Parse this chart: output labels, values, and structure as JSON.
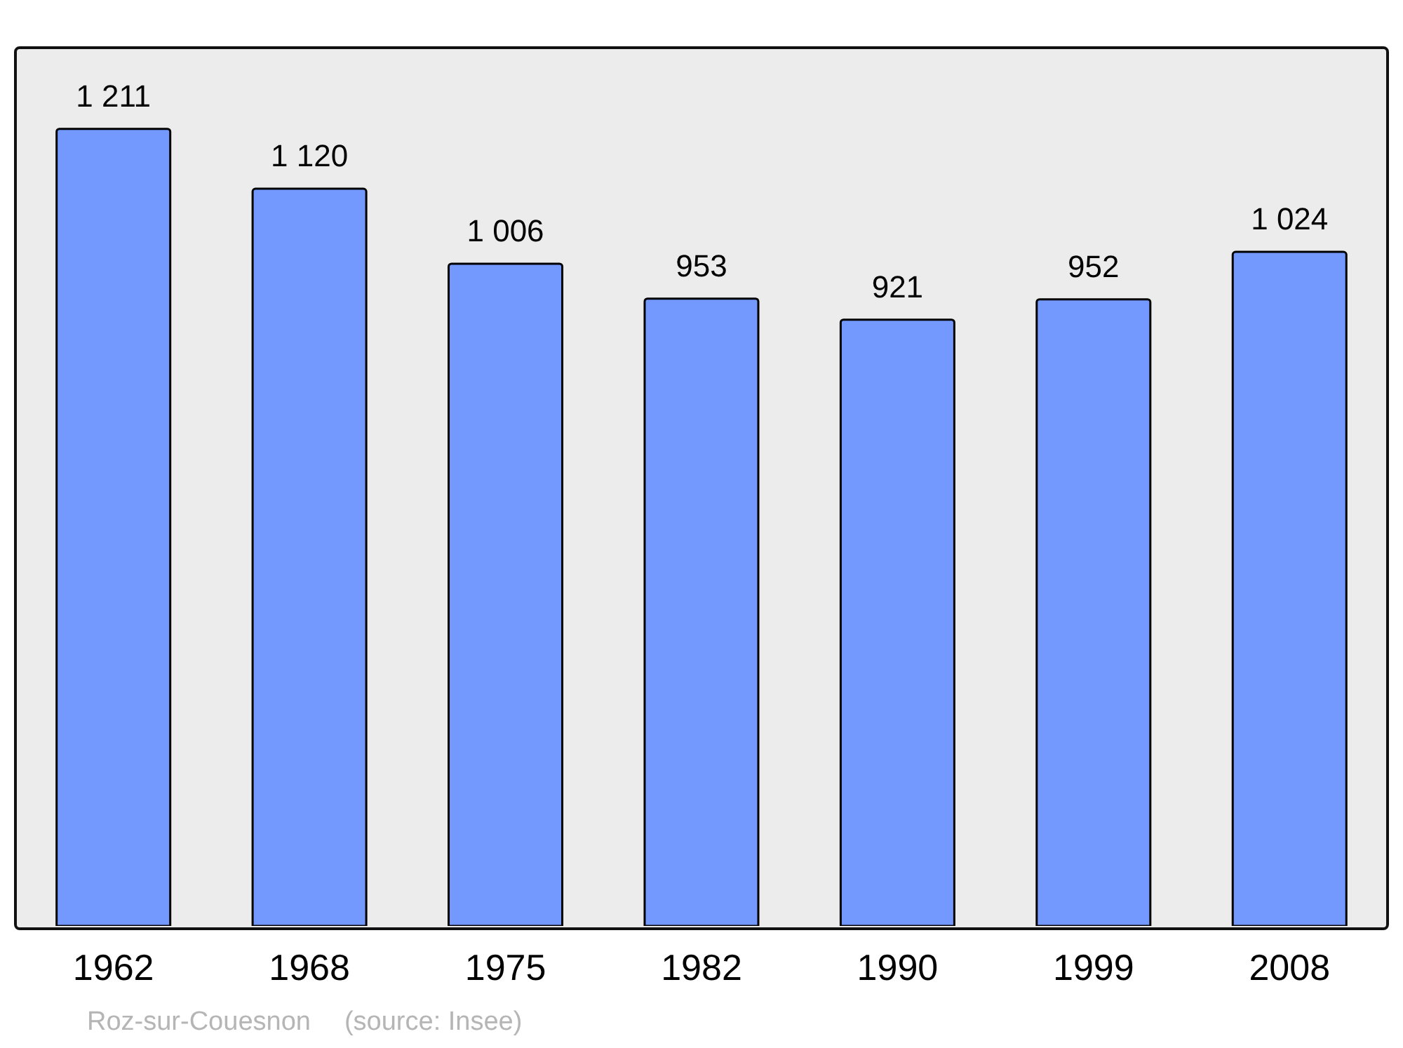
{
  "chart_data": {
    "type": "bar",
    "categories": [
      "1962",
      "1968",
      "1975",
      "1982",
      "1990",
      "1999",
      "2008"
    ],
    "values": [
      1211,
      1120,
      1006,
      953,
      921,
      952,
      1024
    ],
    "value_labels": [
      "1 211",
      "1 120",
      "1 006",
      "953",
      "921",
      "952",
      "1 024"
    ],
    "color": "#7399ff",
    "legend": false,
    "annotations": [
      "Roz-sur-Couesnon",
      "(source: Insee)"
    ]
  }
}
